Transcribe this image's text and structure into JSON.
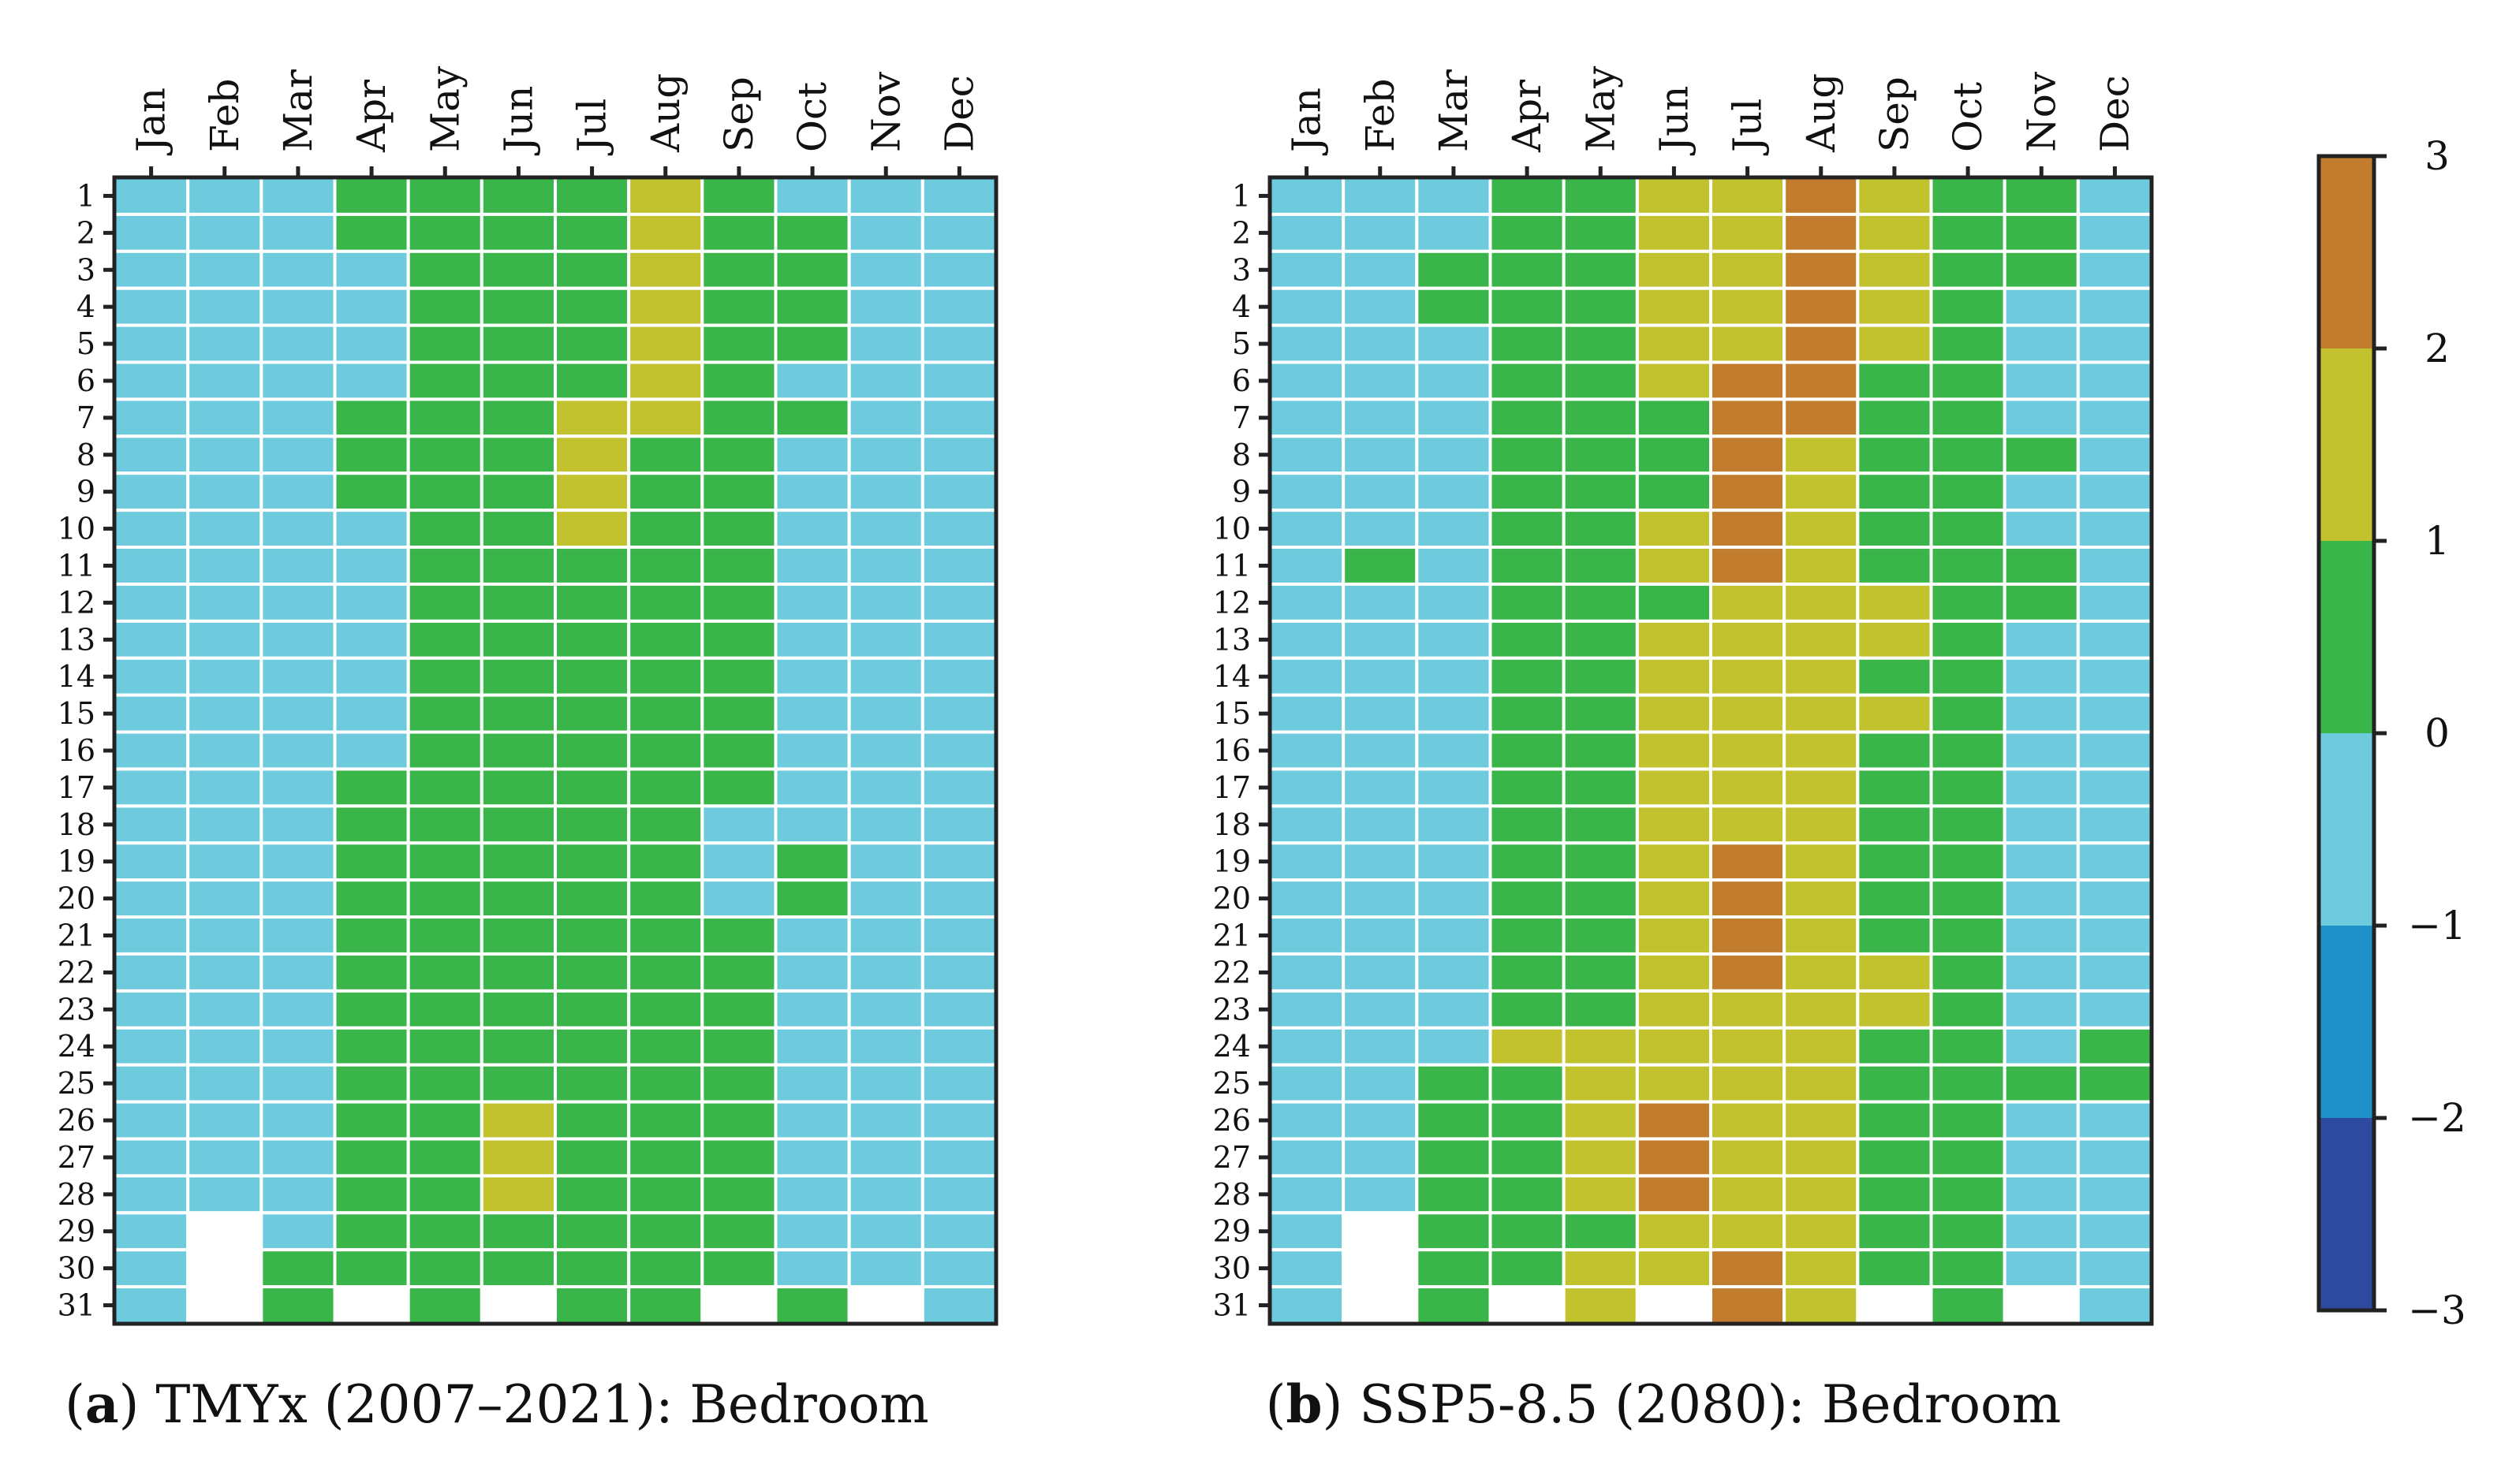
{
  "colors": {
    "level_-3": "#2e4a9e",
    "level_-2": "#1e90c8",
    "level_-1": "#6ecbdd",
    "level_0": "#3ab54a",
    "level_1": "#c2c12e",
    "level_2": "#c27c2e",
    "missing": "#ffffff",
    "gridline": "#ffffff",
    "frame": "#222222"
  },
  "chart_data": [
    {
      "type": "heatmap",
      "panel_letter": "a",
      "caption": "TMYx (2007–2021): Bedroom",
      "months": [
        "Jan",
        "Feb",
        "Mar",
        "Apr",
        "May",
        "Jun",
        "Jul",
        "Aug",
        "Sep",
        "Oct",
        "Nov",
        "Dec"
      ],
      "days": [
        "1",
        "2",
        "3",
        "4",
        "5",
        "6",
        "7",
        "8",
        "9",
        "10",
        "11",
        "12",
        "13",
        "14",
        "15",
        "16",
        "17",
        "18",
        "19",
        "20",
        "21",
        "22",
        "23",
        "24",
        "25",
        "26",
        "27",
        "28",
        "29",
        "30",
        "31"
      ],
      "value_description": "Category per day (rows) and month (columns); each value is the lower bound of its colorbar bin; null = no data",
      "values": [
        [
          -1,
          -1,
          -1,
          0,
          0,
          0,
          0,
          1,
          0,
          -1,
          -1,
          -1
        ],
        [
          -1,
          -1,
          -1,
          0,
          0,
          0,
          0,
          1,
          0,
          0,
          -1,
          -1
        ],
        [
          -1,
          -1,
          -1,
          -1,
          0,
          0,
          0,
          1,
          0,
          0,
          -1,
          -1
        ],
        [
          -1,
          -1,
          -1,
          -1,
          0,
          0,
          0,
          1,
          0,
          0,
          -1,
          -1
        ],
        [
          -1,
          -1,
          -1,
          -1,
          0,
          0,
          0,
          1,
          0,
          0,
          -1,
          -1
        ],
        [
          -1,
          -1,
          -1,
          -1,
          0,
          0,
          0,
          1,
          0,
          -1,
          -1,
          -1
        ],
        [
          -1,
          -1,
          -1,
          0,
          0,
          0,
          1,
          1,
          0,
          0,
          -1,
          -1
        ],
        [
          -1,
          -1,
          -1,
          0,
          0,
          0,
          1,
          0,
          0,
          -1,
          -1,
          -1
        ],
        [
          -1,
          -1,
          -1,
          0,
          0,
          0,
          1,
          0,
          0,
          -1,
          -1,
          -1
        ],
        [
          -1,
          -1,
          -1,
          -1,
          0,
          0,
          1,
          0,
          0,
          -1,
          -1,
          -1
        ],
        [
          -1,
          -1,
          -1,
          -1,
          0,
          0,
          0,
          0,
          0,
          -1,
          -1,
          -1
        ],
        [
          -1,
          -1,
          -1,
          -1,
          0,
          0,
          0,
          0,
          0,
          -1,
          -1,
          -1
        ],
        [
          -1,
          -1,
          -1,
          -1,
          0,
          0,
          0,
          0,
          0,
          -1,
          -1,
          -1
        ],
        [
          -1,
          -1,
          -1,
          -1,
          0,
          0,
          0,
          0,
          0,
          -1,
          -1,
          -1
        ],
        [
          -1,
          -1,
          -1,
          -1,
          0,
          0,
          0,
          0,
          0,
          -1,
          -1,
          -1
        ],
        [
          -1,
          -1,
          -1,
          -1,
          0,
          0,
          0,
          0,
          0,
          -1,
          -1,
          -1
        ],
        [
          -1,
          -1,
          -1,
          0,
          0,
          0,
          0,
          0,
          0,
          -1,
          -1,
          -1
        ],
        [
          -1,
          -1,
          -1,
          0,
          0,
          0,
          0,
          0,
          -1,
          -1,
          -1,
          -1
        ],
        [
          -1,
          -1,
          -1,
          0,
          0,
          0,
          0,
          0,
          -1,
          0,
          -1,
          -1
        ],
        [
          -1,
          -1,
          -1,
          0,
          0,
          0,
          0,
          0,
          -1,
          0,
          -1,
          -1
        ],
        [
          -1,
          -1,
          -1,
          0,
          0,
          0,
          0,
          0,
          0,
          -1,
          -1,
          -1
        ],
        [
          -1,
          -1,
          -1,
          0,
          0,
          0,
          0,
          0,
          0,
          -1,
          -1,
          -1
        ],
        [
          -1,
          -1,
          -1,
          0,
          0,
          0,
          0,
          0,
          0,
          -1,
          -1,
          -1
        ],
        [
          -1,
          -1,
          -1,
          0,
          0,
          0,
          0,
          0,
          0,
          -1,
          -1,
          -1
        ],
        [
          -1,
          -1,
          -1,
          0,
          0,
          0,
          0,
          0,
          0,
          -1,
          -1,
          -1
        ],
        [
          -1,
          -1,
          -1,
          0,
          0,
          1,
          0,
          0,
          0,
          -1,
          -1,
          -1
        ],
        [
          -1,
          -1,
          -1,
          0,
          0,
          1,
          0,
          0,
          0,
          -1,
          -1,
          -1
        ],
        [
          -1,
          -1,
          -1,
          0,
          0,
          1,
          0,
          0,
          0,
          -1,
          -1,
          -1
        ],
        [
          -1,
          null,
          -1,
          0,
          0,
          0,
          0,
          0,
          0,
          -1,
          -1,
          -1
        ],
        [
          -1,
          null,
          0,
          0,
          0,
          0,
          0,
          0,
          0,
          -1,
          -1,
          -1
        ],
        [
          -1,
          null,
          0,
          null,
          0,
          null,
          0,
          0,
          null,
          0,
          null,
          -1
        ]
      ]
    },
    {
      "type": "heatmap",
      "panel_letter": "b",
      "caption": "SSP5-8.5 (2080): Bedroom",
      "months": [
        "Jan",
        "Feb",
        "Mar",
        "Apr",
        "May",
        "Jun",
        "Jul",
        "Aug",
        "Sep",
        "Oct",
        "Nov",
        "Dec"
      ],
      "days": [
        "1",
        "2",
        "3",
        "4",
        "5",
        "6",
        "7",
        "8",
        "9",
        "10",
        "11",
        "12",
        "13",
        "14",
        "15",
        "16",
        "17",
        "18",
        "19",
        "20",
        "21",
        "22",
        "23",
        "24",
        "25",
        "26",
        "27",
        "28",
        "29",
        "30",
        "31"
      ],
      "value_description": "Category per day (rows) and month (columns); each value is the lower bound of its colorbar bin; null = no data",
      "values": [
        [
          -1,
          -1,
          -1,
          0,
          0,
          1,
          1,
          2,
          1,
          0,
          0,
          -1
        ],
        [
          -1,
          -1,
          -1,
          0,
          0,
          1,
          1,
          2,
          1,
          0,
          0,
          -1
        ],
        [
          -1,
          -1,
          0,
          0,
          0,
          1,
          1,
          2,
          1,
          0,
          0,
          -1
        ],
        [
          -1,
          -1,
          0,
          0,
          0,
          1,
          1,
          2,
          1,
          0,
          -1,
          -1
        ],
        [
          -1,
          -1,
          -1,
          0,
          0,
          1,
          1,
          2,
          1,
          0,
          -1,
          -1
        ],
        [
          -1,
          -1,
          -1,
          0,
          0,
          1,
          2,
          2,
          0,
          0,
          -1,
          -1
        ],
        [
          -1,
          -1,
          -1,
          0,
          0,
          0,
          2,
          2,
          0,
          0,
          -1,
          -1
        ],
        [
          -1,
          -1,
          -1,
          0,
          0,
          0,
          2,
          1,
          0,
          0,
          0,
          -1
        ],
        [
          -1,
          -1,
          -1,
          0,
          0,
          0,
          2,
          1,
          0,
          0,
          -1,
          -1
        ],
        [
          -1,
          -1,
          -1,
          0,
          0,
          1,
          2,
          1,
          0,
          0,
          -1,
          -1
        ],
        [
          -1,
          0,
          -1,
          0,
          0,
          1,
          2,
          1,
          0,
          0,
          0,
          -1
        ],
        [
          -1,
          -1,
          -1,
          0,
          0,
          0,
          1,
          1,
          1,
          0,
          0,
          -1
        ],
        [
          -1,
          -1,
          -1,
          0,
          0,
          1,
          1,
          1,
          1,
          0,
          -1,
          -1
        ],
        [
          -1,
          -1,
          -1,
          0,
          0,
          1,
          1,
          1,
          0,
          0,
          -1,
          -1
        ],
        [
          -1,
          -1,
          -1,
          0,
          0,
          1,
          1,
          1,
          1,
          0,
          -1,
          -1
        ],
        [
          -1,
          -1,
          -1,
          0,
          0,
          1,
          1,
          1,
          0,
          0,
          -1,
          -1
        ],
        [
          -1,
          -1,
          -1,
          0,
          0,
          1,
          1,
          1,
          0,
          0,
          -1,
          -1
        ],
        [
          -1,
          -1,
          -1,
          0,
          0,
          1,
          1,
          1,
          0,
          0,
          -1,
          -1
        ],
        [
          -1,
          -1,
          -1,
          0,
          0,
          1,
          2,
          1,
          0,
          0,
          -1,
          -1
        ],
        [
          -1,
          -1,
          -1,
          0,
          0,
          1,
          2,
          1,
          0,
          0,
          -1,
          -1
        ],
        [
          -1,
          -1,
          -1,
          0,
          0,
          1,
          2,
          1,
          0,
          0,
          -1,
          -1
        ],
        [
          -1,
          -1,
          -1,
          0,
          0,
          1,
          2,
          1,
          1,
          0,
          -1,
          -1
        ],
        [
          -1,
          -1,
          -1,
          0,
          0,
          1,
          1,
          1,
          1,
          0,
          -1,
          -1
        ],
        [
          -1,
          -1,
          -1,
          1,
          1,
          1,
          1,
          1,
          0,
          0,
          -1,
          0
        ],
        [
          -1,
          -1,
          0,
          0,
          1,
          1,
          1,
          1,
          0,
          0,
          0,
          0
        ],
        [
          -1,
          -1,
          0,
          0,
          1,
          2,
          1,
          1,
          0,
          0,
          -1,
          -1
        ],
        [
          -1,
          -1,
          0,
          0,
          1,
          2,
          1,
          1,
          0,
          0,
          -1,
          -1
        ],
        [
          -1,
          -1,
          0,
          0,
          1,
          2,
          1,
          1,
          0,
          0,
          -1,
          -1
        ],
        [
          -1,
          null,
          0,
          0,
          0,
          1,
          1,
          1,
          0,
          0,
          -1,
          -1
        ],
        [
          -1,
          null,
          0,
          0,
          1,
          1,
          2,
          1,
          0,
          0,
          -1,
          -1
        ],
        [
          -1,
          null,
          0,
          null,
          1,
          null,
          2,
          1,
          null,
          0,
          null,
          -1
        ]
      ]
    },
    {
      "type": "colorbar",
      "range": [
        -3,
        3
      ],
      "bounds": [
        -3,
        -2,
        -1,
        0,
        1,
        2,
        3
      ],
      "tick_labels": [
        "3",
        "2",
        "1",
        "0",
        "−1",
        "−2",
        "−3"
      ],
      "tick_values": [
        3,
        2,
        1,
        0,
        -1,
        -2,
        -3
      ]
    }
  ]
}
